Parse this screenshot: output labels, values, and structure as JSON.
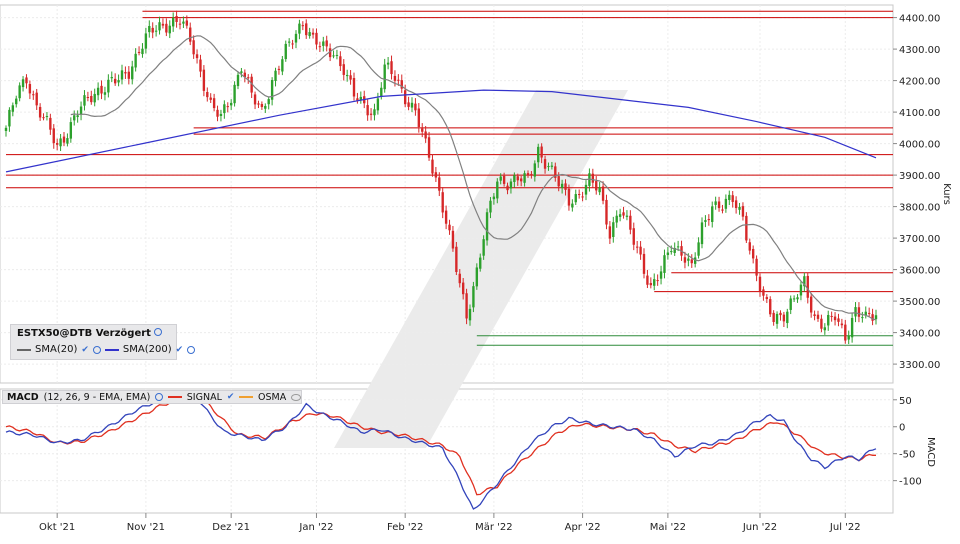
{
  "colors": {
    "up": "#2ca02c",
    "down": "#d62728",
    "sma20": "#808080",
    "sma200": "#3333cc",
    "resistance": "#cc0000",
    "support": "#2e8b3a",
    "macd": "#3344bb",
    "signal": "#e03020",
    "osma": "#f0a030",
    "watermark": "#e9e9e9"
  },
  "icons": [
    "globe-icon",
    "checkmark-icon",
    "eye-icon"
  ],
  "price_legend": {
    "symbol": "ESTX50@DTB Verzögert",
    "sma20_label": "SMA(20)",
    "sma200_label": "SMA(200)"
  },
  "macd_legend": {
    "title": "MACD",
    "params": "(12, 26, 9 - EMA, EMA)",
    "signal_label": "SIGNAL",
    "osma_label": "OSMA"
  },
  "chart_data": [
    {
      "type": "candlestick",
      "ylabel": "Kurs",
      "ylim": [
        3240,
        4440
      ],
      "yticks": [
        "3300.00",
        "3400.00",
        "3500.00",
        "3600.00",
        "3700.00",
        "3800.00",
        "3900.00",
        "4000.00",
        "4100.00",
        "4200.00",
        "4300.00",
        "4400.00"
      ],
      "x_tick_labels": [
        "Okt '21",
        "Nov '21",
        "Dez '21",
        "Jan '22",
        "Feb '22",
        "Mär '22",
        "Apr '22",
        "Mai '22",
        "Jun '22",
        "Jul '22"
      ],
      "close_anchors": [
        [
          0,
          4050
        ],
        [
          3,
          4150
        ],
        [
          6,
          4210
        ],
        [
          9,
          4120
        ],
        [
          12,
          4060
        ],
        [
          15,
          3990
        ],
        [
          18,
          4040
        ],
        [
          21,
          4100
        ],
        [
          24,
          4140
        ],
        [
          27,
          4170
        ],
        [
          30,
          4190
        ],
        [
          33,
          4200
        ],
        [
          36,
          4230
        ],
        [
          39,
          4300
        ],
        [
          42,
          4350
        ],
        [
          45,
          4370
        ],
        [
          48,
          4385
        ],
        [
          51,
          4390
        ],
        [
          54,
          4330
        ],
        [
          57,
          4230
        ],
        [
          60,
          4120
        ],
        [
          63,
          4080
        ],
        [
          66,
          4150
        ],
        [
          69,
          4250
        ],
        [
          72,
          4150
        ],
        [
          75,
          4100
        ],
        [
          78,
          4200
        ],
        [
          81,
          4270
        ],
        [
          84,
          4330
        ],
        [
          87,
          4390
        ],
        [
          90,
          4330
        ],
        [
          93,
          4300
        ],
        [
          96,
          4290
        ],
        [
          99,
          4240
        ],
        [
          102,
          4150
        ],
        [
          105,
          4120
        ],
        [
          108,
          4100
        ],
        [
          111,
          4240
        ],
        [
          114,
          4210
        ],
        [
          117,
          4150
        ],
        [
          120,
          4100
        ],
        [
          123,
          3990
        ],
        [
          126,
          3890
        ],
        [
          129,
          3760
        ],
        [
          132,
          3600
        ],
        [
          135,
          3450
        ],
        [
          138,
          3600
        ],
        [
          141,
          3760
        ],
        [
          144,
          3880
        ],
        [
          147,
          3880
        ],
        [
          150,
          3890
        ],
        [
          153,
          3880
        ],
        [
          156,
          3980
        ],
        [
          159,
          3930
        ],
        [
          162,
          3870
        ],
        [
          165,
          3820
        ],
        [
          168,
          3840
        ],
        [
          171,
          3880
        ],
        [
          174,
          3850
        ],
        [
          177,
          3720
        ],
        [
          180,
          3790
        ],
        [
          183,
          3720
        ],
        [
          186,
          3640
        ],
        [
          189,
          3540
        ],
        [
          192,
          3590
        ],
        [
          195,
          3680
        ],
        [
          198,
          3660
        ],
        [
          201,
          3600
        ],
        [
          204,
          3730
        ],
        [
          207,
          3810
        ],
        [
          210,
          3800
        ],
        [
          213,
          3820
        ],
        [
          216,
          3770
        ],
        [
          219,
          3620
        ],
        [
          222,
          3500
        ],
        [
          225,
          3450
        ],
        [
          228,
          3460
        ],
        [
          231,
          3500
        ],
        [
          234,
          3560
        ],
        [
          237,
          3450
        ],
        [
          240,
          3420
        ],
        [
          243,
          3450
        ],
        [
          246,
          3390
        ],
        [
          249,
          3470
        ],
        [
          252,
          3440
        ],
        [
          255,
          3460
        ]
      ],
      "count": 256,
      "sma200": [
        [
          0,
          3910
        ],
        [
          40,
          4000
        ],
        [
          80,
          4090
        ],
        [
          110,
          4150
        ],
        [
          140,
          4170
        ],
        [
          160,
          4165
        ],
        [
          180,
          4140
        ],
        [
          200,
          4115
        ],
        [
          220,
          4070
        ],
        [
          240,
          4020
        ],
        [
          256,
          3955
        ]
      ],
      "sma200_start": 0,
      "sma20_start": 20,
      "resistance_lines": [
        {
          "from": 40,
          "value": 4420
        },
        {
          "from": 40,
          "value": 4400
        },
        {
          "from": 55,
          "value": 4050
        },
        {
          "from": 55,
          "value": 4030
        },
        {
          "from": 0,
          "value": 3965
        },
        {
          "from": 0,
          "value": 3900
        },
        {
          "from": 0,
          "value": 3860
        },
        {
          "from": 195,
          "value": 3590
        },
        {
          "from": 190,
          "value": 3530
        }
      ],
      "support_lines": [
        {
          "from": 138,
          "value": 3390
        },
        {
          "from": 138,
          "value": 3360
        }
      ]
    },
    {
      "type": "line",
      "name": "MACD",
      "ylabel": "MACD",
      "ylim": [
        -160,
        70
      ],
      "yticks": [
        "50",
        "0",
        "-50",
        "-100"
      ],
      "macd": [
        [
          0,
          -10
        ],
        [
          8,
          -15
        ],
        [
          15,
          -30
        ],
        [
          22,
          -25
        ],
        [
          30,
          0
        ],
        [
          38,
          30
        ],
        [
          45,
          50
        ],
        [
          52,
          60
        ],
        [
          56,
          55
        ],
        [
          60,
          20
        ],
        [
          64,
          -10
        ],
        [
          68,
          -15
        ],
        [
          75,
          -25
        ],
        [
          82,
          0
        ],
        [
          88,
          40
        ],
        [
          92,
          25
        ],
        [
          98,
          10
        ],
        [
          104,
          -10
        ],
        [
          110,
          -5
        ],
        [
          116,
          -20
        ],
        [
          122,
          -30
        ],
        [
          128,
          -40
        ],
        [
          133,
          -100
        ],
        [
          137,
          -155
        ],
        [
          142,
          -120
        ],
        [
          148,
          -75
        ],
        [
          154,
          -30
        ],
        [
          160,
          0
        ],
        [
          165,
          15
        ],
        [
          172,
          5
        ],
        [
          178,
          0
        ],
        [
          184,
          -5
        ],
        [
          190,
          -25
        ],
        [
          196,
          -55
        ],
        [
          202,
          -35
        ],
        [
          208,
          -30
        ],
        [
          214,
          -15
        ],
        [
          220,
          10
        ],
        [
          224,
          20
        ],
        [
          228,
          10
        ],
        [
          232,
          -30
        ],
        [
          236,
          -60
        ],
        [
          240,
          -75
        ],
        [
          246,
          -55
        ],
        [
          250,
          -60
        ],
        [
          255,
          -38
        ]
      ],
      "signal": [
        [
          0,
          0
        ],
        [
          8,
          -10
        ],
        [
          15,
          -30
        ],
        [
          22,
          -28
        ],
        [
          30,
          -10
        ],
        [
          38,
          15
        ],
        [
          45,
          38
        ],
        [
          52,
          55
        ],
        [
          58,
          50
        ],
        [
          64,
          10
        ],
        [
          68,
          -15
        ],
        [
          76,
          -20
        ],
        [
          84,
          10
        ],
        [
          90,
          25
        ],
        [
          96,
          20
        ],
        [
          104,
          0
        ],
        [
          110,
          -10
        ],
        [
          116,
          -15
        ],
        [
          122,
          -25
        ],
        [
          128,
          -35
        ],
        [
          133,
          -55
        ],
        [
          138,
          -125
        ],
        [
          144,
          -110
        ],
        [
          150,
          -70
        ],
        [
          156,
          -40
        ],
        [
          162,
          -10
        ],
        [
          168,
          5
        ],
        [
          176,
          0
        ],
        [
          184,
          -5
        ],
        [
          190,
          -15
        ],
        [
          196,
          -35
        ],
        [
          202,
          -45
        ],
        [
          208,
          -35
        ],
        [
          214,
          -25
        ],
        [
          220,
          -5
        ],
        [
          226,
          10
        ],
        [
          232,
          -15
        ],
        [
          238,
          -45
        ],
        [
          244,
          -55
        ],
        [
          250,
          -60
        ],
        [
          255,
          -50
        ]
      ]
    }
  ]
}
